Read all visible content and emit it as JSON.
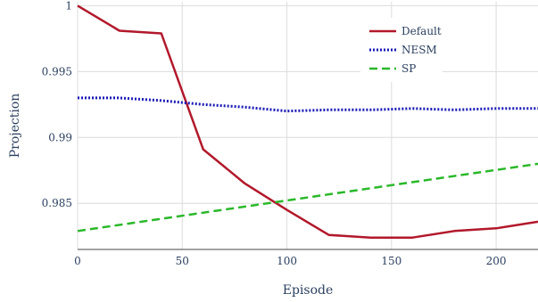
{
  "chart_data": {
    "type": "line",
    "title": "",
    "xlabel": "Episode",
    "ylabel": "Projection",
    "xlim": [
      0,
      220
    ],
    "ylim": [
      0.9815,
      1.0003
    ],
    "xticks": [
      0,
      50,
      100,
      150,
      200
    ],
    "yticks": [
      0.985,
      0.99,
      0.995,
      1
    ],
    "xtick_labels": [
      "0",
      "50",
      "100",
      "150",
      "200"
    ],
    "ytick_labels": [
      "0.985",
      "0.99",
      "0.995",
      "1"
    ],
    "grid": true,
    "legend_position": "top-right",
    "series": [
      {
        "name": "Default",
        "color": "#b2182b",
        "style": "solid",
        "x": [
          0,
          20,
          40,
          60,
          80,
          100,
          120,
          140,
          160,
          180,
          200,
          220
        ],
        "y": [
          1.0,
          0.9981,
          0.9979,
          0.9891,
          0.9865,
          0.9845,
          0.9826,
          0.9824,
          0.9824,
          0.9829,
          0.9831,
          0.9836
        ]
      },
      {
        "name": "NESM",
        "color": "#1a1ab8",
        "style": "dotted",
        "x": [
          0,
          20,
          40,
          60,
          80,
          100,
          120,
          140,
          160,
          180,
          200,
          220
        ],
        "y": [
          0.993,
          0.993,
          0.9928,
          0.9925,
          0.9923,
          0.992,
          0.9921,
          0.9921,
          0.9922,
          0.9921,
          0.9922,
          0.9922
        ]
      },
      {
        "name": "SP",
        "color": "#2ab82a",
        "style": "dashed",
        "x": [
          0,
          220
        ],
        "y": [
          0.9829,
          0.988
        ]
      }
    ]
  }
}
